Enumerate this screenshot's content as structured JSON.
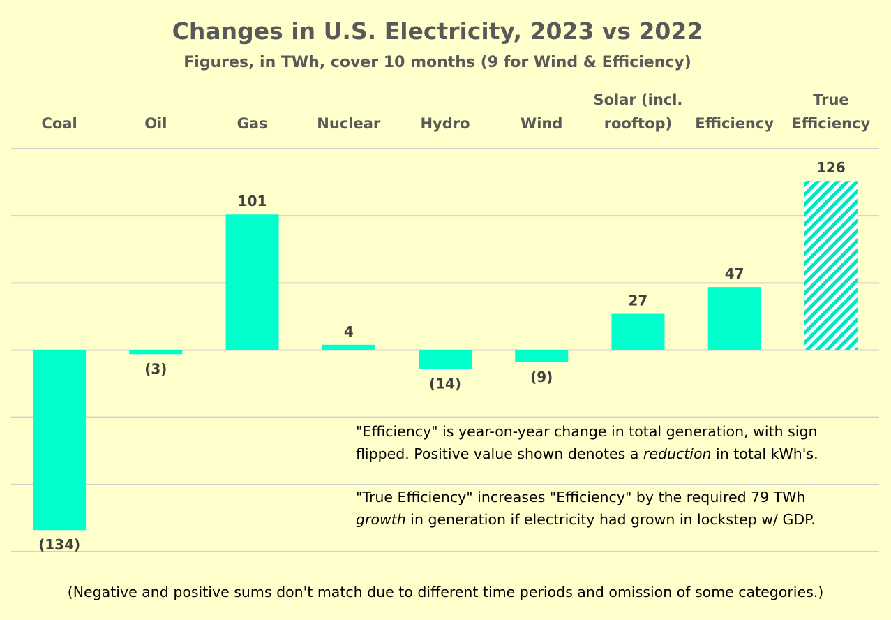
{
  "chart_data": {
    "type": "bar",
    "title": "Changes in U.S. Electricity, 2023 vs 2022",
    "subtitle": "Figures, in TWh, cover 10 months (9 for Wind & Efficiency)",
    "categories": [
      [
        "Coal"
      ],
      [
        "Oil"
      ],
      [
        "Gas"
      ],
      [
        "Nuclear"
      ],
      [
        "Hydro"
      ],
      [
        "Wind"
      ],
      [
        "Solar (incl.",
        "rooftop)"
      ],
      [
        "Efficiency"
      ],
      [
        "True",
        "Efficiency"
      ]
    ],
    "values": [
      -134,
      -3,
      101,
      4,
      -14,
      -9,
      27,
      47,
      126
    ],
    "data_labels": [
      "(134)",
      "(3)",
      "101",
      "4",
      "(14)",
      "(9)",
      "27",
      "47",
      "126"
    ],
    "hatched": [
      false,
      false,
      false,
      false,
      false,
      false,
      false,
      false,
      true
    ],
    "ylim": [
      -150,
      150
    ],
    "grid": true,
    "category_axis_position": "top",
    "colors": {
      "bar": "#00ffcc",
      "grid": "#d0d0d0",
      "background": "#ffffcc",
      "text": "#595959"
    }
  },
  "notes": {
    "note1": {
      "line1": "\"Efficiency\" is year-on-year change in total generation, with sign",
      "line2_before": "flipped. Positive value shown denotes a ",
      "line2_em": "reduction",
      "line2_after": " in total kWh's."
    },
    "note2": {
      "line1": "\"True Efficiency\" increases \"Efficiency\" by the required 79 TWh",
      "line2_em": "growth",
      "line2_after": " in generation if electricity had grown in lockstep w/ GDP."
    }
  },
  "footnote": "(Negative and positive sums don't match due to different time periods and omission of some categories.)"
}
